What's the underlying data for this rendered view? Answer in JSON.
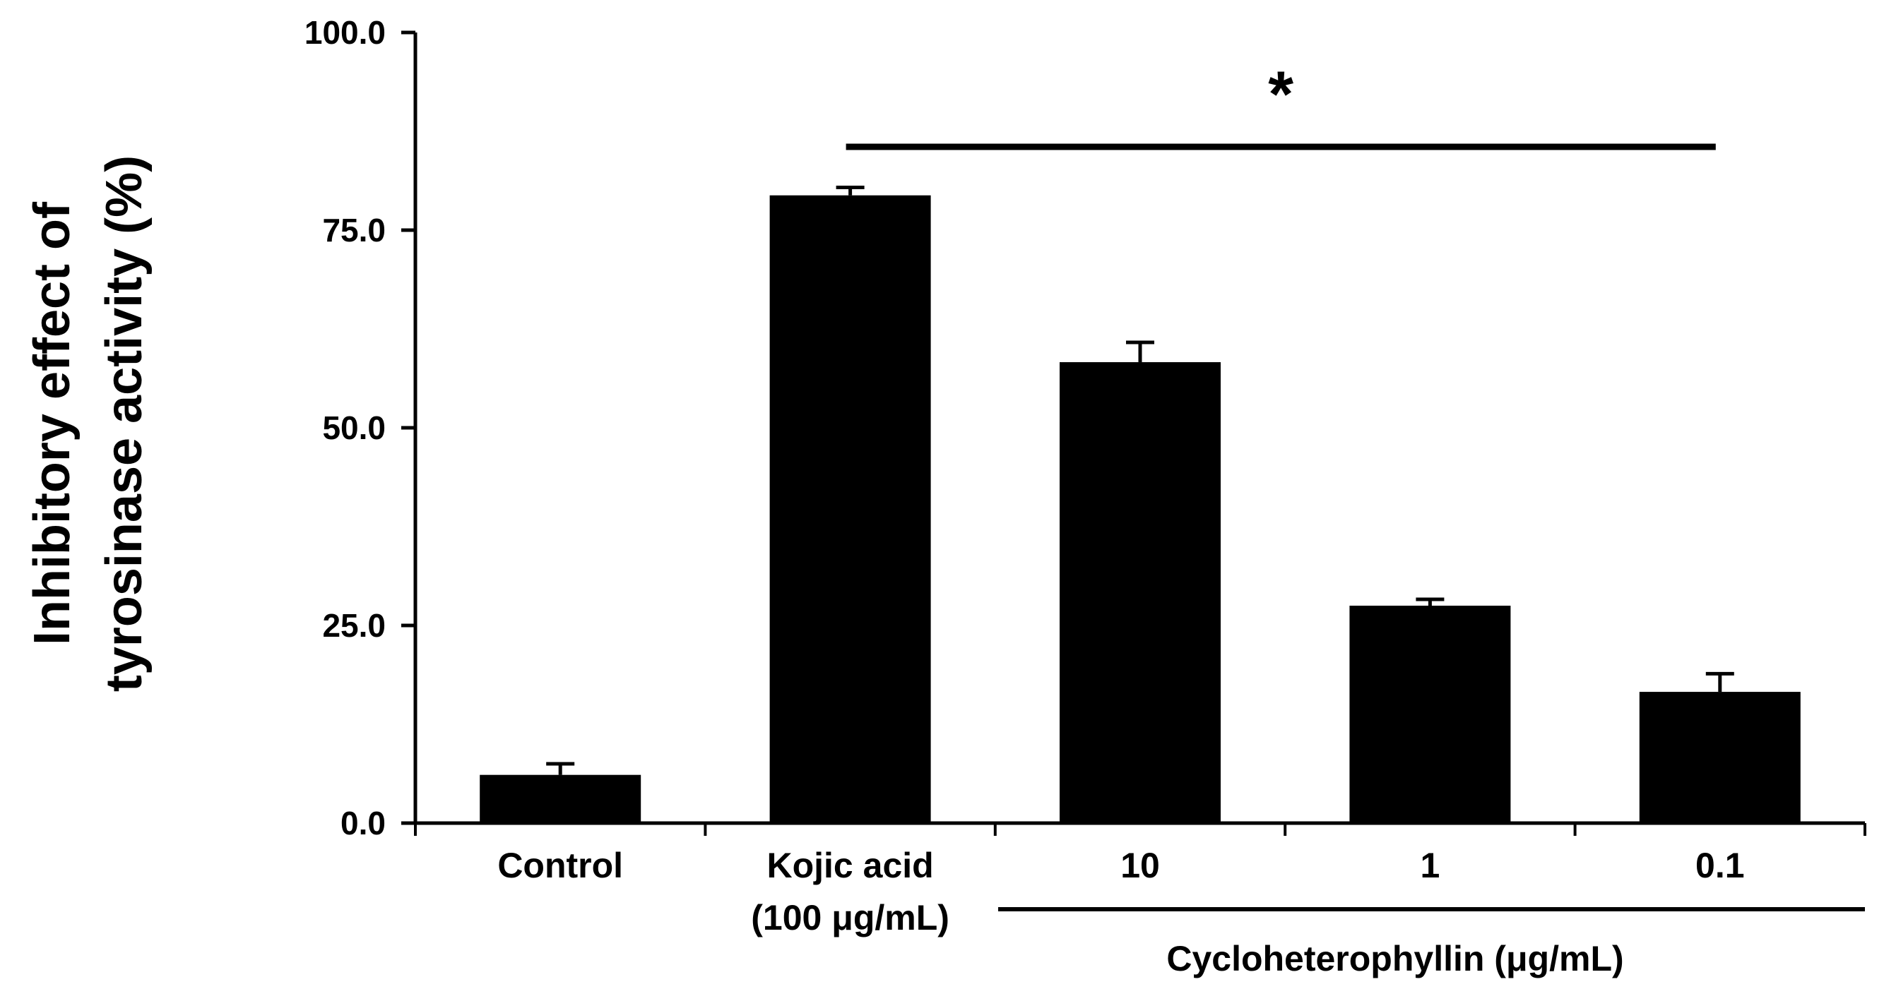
{
  "chart_data": {
    "type": "bar",
    "title": "",
    "ylabel_lines": [
      "Inhibitory effect of",
      "tyrosinase activity (%)"
    ],
    "xlabel": "",
    "ylim": [
      0,
      100
    ],
    "yticks": [
      "0.0",
      "25.0",
      "50.0",
      "75.0",
      "100.0"
    ],
    "categories": [
      {
        "lines": [
          "Control"
        ],
        "value": 6.1,
        "error": 1.4
      },
      {
        "lines": [
          "Kojic acid",
          "(100 μg/mL)"
        ],
        "value": 79.4,
        "error": 1.0
      },
      {
        "lines": [
          "10"
        ],
        "value": 58.3,
        "error": 2.5
      },
      {
        "lines": [
          "1"
        ],
        "value": 27.5,
        "error": 0.8
      },
      {
        "lines": [
          "0.1"
        ],
        "value": 16.6,
        "error": 2.3
      }
    ],
    "group_label": "Cycloheterophyllin (μg/mL)",
    "significance": {
      "symbol": "*",
      "from_category": 1,
      "to_category": 4
    },
    "bar_color": "#000000"
  }
}
